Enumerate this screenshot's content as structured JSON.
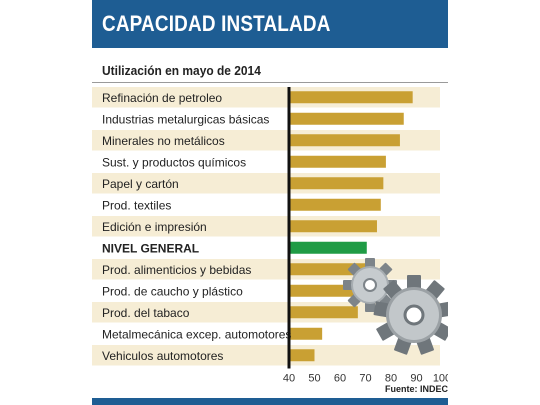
{
  "header": {
    "title": "CAPACIDAD INSTALADA"
  },
  "subtitle": "Utilización en mayo de 2014",
  "source": "Fuente: INDEC",
  "colors": {
    "header": "#1e5d93",
    "bar": "#c9a033",
    "highlight_bar": "#1f9b45",
    "row_bg": "#f6edd5",
    "row_bg_alt": "#ffffff"
  },
  "chart_data": {
    "type": "bar",
    "orientation": "horizontal",
    "categories": [
      "Refinación de petroleo",
      "Industrias metalurgicas básicas",
      "Minerales no metálicos",
      "Sust. y productos químicos",
      "Papel y cartón",
      "Prod. textiles",
      "Edición e impresión",
      "NIVEL GENERAL",
      "Prod. alimenticios y bebidas",
      "Prod. de caucho y plástico",
      "Prod. del tabaco",
      "Metalmecánica excep. automotores",
      "Vehiculos automotores"
    ],
    "values": [
      88.5,
      85,
      83.5,
      78,
      77,
      76,
      74.5,
      70.5,
      70,
      69.5,
      67,
      53,
      50
    ],
    "highlight": "NIVEL GENERAL",
    "xlim": [
      40,
      100
    ],
    "ticks": [
      40,
      50,
      60,
      70,
      80,
      90,
      100
    ],
    "tick_labels": [
      "40",
      "50",
      "60",
      "70",
      "80",
      "90",
      "100"
    ]
  }
}
